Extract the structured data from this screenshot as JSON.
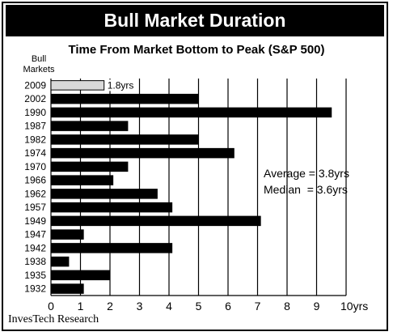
{
  "chart_data": {
    "type": "bar",
    "orientation": "horizontal",
    "title": "Bull Market Duration",
    "subtitle": "Time From Market Bottom to Peak (S&P 500)",
    "ylabel": "Bull Markets",
    "xlim": [
      0,
      10
    ],
    "x_ticks": [
      "0",
      "1",
      "2",
      "3",
      "4",
      "5",
      "6",
      "7",
      "8",
      "9",
      "10yrs"
    ],
    "grid": "vertical",
    "categories": [
      "2009",
      "2002",
      "1990",
      "1987",
      "1982",
      "1974",
      "1970",
      "1966",
      "1962",
      "1957",
      "1949",
      "1947",
      "1942",
      "1938",
      "1935",
      "1932"
    ],
    "values": [
      1.8,
      5.0,
      9.5,
      2.6,
      5.0,
      6.2,
      2.6,
      2.1,
      3.6,
      4.1,
      7.1,
      1.1,
      4.1,
      0.6,
      2.0,
      1.1
    ],
    "highlight": {
      "category": "2009",
      "color": "#d9d9d9",
      "label": "1.8yrs"
    },
    "bar_color": "#000000",
    "annotations": [
      "Average = 3.8yrs",
      "Median  = 3.6yrs"
    ],
    "source": "InvesTech Research"
  }
}
